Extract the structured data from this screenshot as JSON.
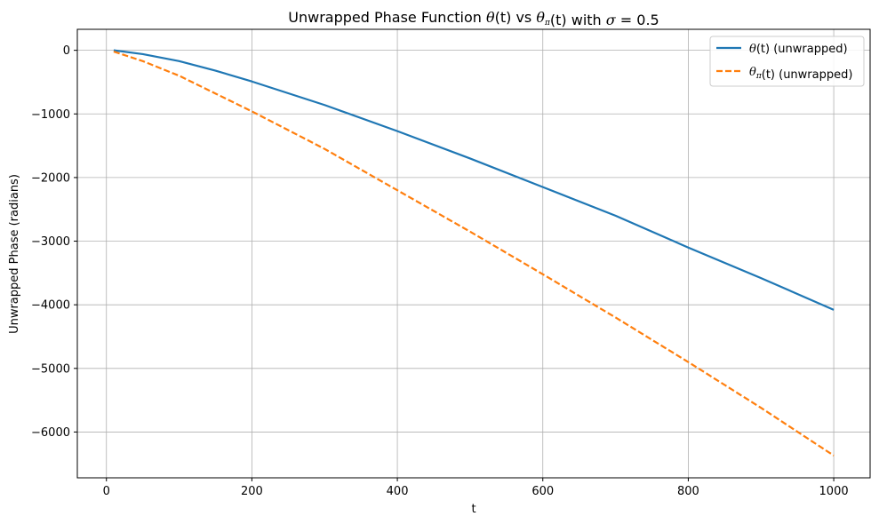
{
  "chart_data": {
    "type": "line",
    "title": "Unwrapped Phase Function θ(t) vs θπ(t) with σ = 0.5",
    "xlabel": "t",
    "ylabel": "Unwrapped Phase (radians)",
    "xlim": [
      -40,
      1050
    ],
    "ylim": [
      -6720,
      330
    ],
    "xticks": [
      0,
      200,
      400,
      600,
      800,
      1000
    ],
    "yticks": [
      0,
      -1000,
      -2000,
      -3000,
      -4000,
      -5000,
      -6000
    ],
    "xtick_labels": [
      "0",
      "200",
      "400",
      "600",
      "800",
      "1000"
    ],
    "ytick_labels": [
      "0",
      "−1000",
      "−2000",
      "−3000",
      "−4000",
      "−5000",
      "−6000"
    ],
    "grid": true,
    "legend_position": "top-right",
    "series": [
      {
        "name": "θ(t) (unwrapped)",
        "color": "#1f77b4",
        "style": "solid",
        "x": [
          10,
          50,
          100,
          150,
          200,
          300,
          400,
          500,
          600,
          700,
          800,
          900,
          1000
        ],
        "y": [
          0,
          -60,
          -170,
          -320,
          -490,
          -860,
          -1270,
          -1700,
          -2150,
          -2600,
          -3100,
          -3580,
          -4080
        ]
      },
      {
        "name": "θπ(t) (unwrapped)",
        "color": "#ff7f0e",
        "style": "dashed",
        "x": [
          10,
          50,
          100,
          150,
          200,
          300,
          400,
          500,
          600,
          700,
          800,
          900,
          1000
        ],
        "y": [
          -20,
          -170,
          -400,
          -680,
          -960,
          -1550,
          -2200,
          -2850,
          -3520,
          -4200,
          -4900,
          -5620,
          -6370
        ]
      }
    ]
  }
}
